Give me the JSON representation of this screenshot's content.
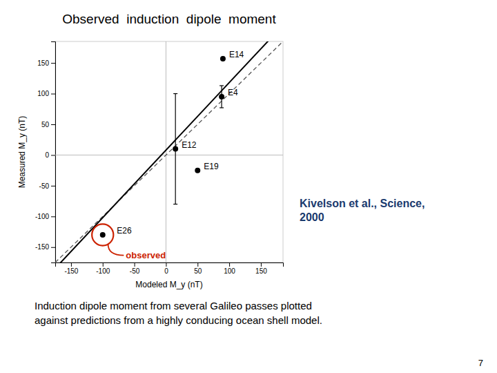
{
  "chart_data": {
    "type": "scatter",
    "title": "Observed  induction  dipole  moment",
    "x_label": "Modeled M_y (nT)",
    "y_label": "Measured M_y (nT)",
    "labels": [
      "E14",
      "E4",
      "E12",
      "E19",
      "E26"
    ],
    "x": [
      90,
      88,
      15,
      50,
      -100
    ],
    "values": [
      157,
      95,
      10,
      -25,
      -130
    ],
    "errors": [
      null,
      18,
      90,
      null,
      null
    ],
    "color": "#000000",
    "xlim": [
      -175,
      185
    ],
    "ylim": [
      -175,
      185
    ],
    "xticks": [
      -150,
      -100,
      -50,
      0,
      50,
      100,
      150
    ],
    "yticks": [
      -150,
      -100,
      -50,
      0,
      50,
      100,
      150
    ],
    "hlines": [
      0
    ],
    "vlines": [
      0
    ],
    "lines": [
      {
        "slope": 1.0,
        "intercept": 0,
        "color": "#555555",
        "line_style": "dashed"
      },
      {
        "slope": 1.1,
        "intercept": 8,
        "color": "#000000",
        "line_style": "solid"
      }
    ],
    "annotations": [
      {
        "text": "observed",
        "x": -100,
        "y": -130,
        "color": "#cc2200"
      }
    ],
    "reference": [
      "Kivelson et al., Science,",
      "2000"
    ],
    "reference_color": "#1a3a6e",
    "caption": [
      "Induction dipole moment from several Galileo passes plotted",
      "against predictions from a highly conducing ocean shell model."
    ],
    "page_number": "7"
  }
}
